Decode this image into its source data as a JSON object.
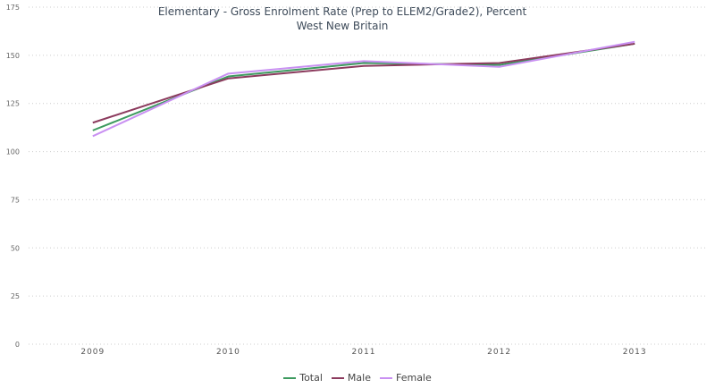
{
  "chart_data": {
    "type": "line",
    "title": "Elementary - Gross Enrolment Rate (Prep to ELEM2/Grade2), Percent",
    "subtitle": "West New Britain",
    "xlabel": "",
    "ylabel": "",
    "categories": [
      "2009",
      "2010",
      "2011",
      "2012",
      "2013"
    ],
    "ylim": [
      0,
      175
    ],
    "yticks": [
      0,
      25,
      50,
      75,
      100,
      125,
      150,
      175
    ],
    "grid": true,
    "legend_position": "bottom-center",
    "series": [
      {
        "name": "Total",
        "color": "#3d9a5f",
        "values": [
          111,
          139,
          146,
          145,
          156
        ]
      },
      {
        "name": "Male",
        "color": "#8c3b5e",
        "values": [
          115,
          138,
          144.5,
          146,
          156
        ]
      },
      {
        "name": "Female",
        "color": "#c990f2",
        "values": [
          108,
          140.5,
          147,
          144,
          157
        ]
      }
    ]
  }
}
